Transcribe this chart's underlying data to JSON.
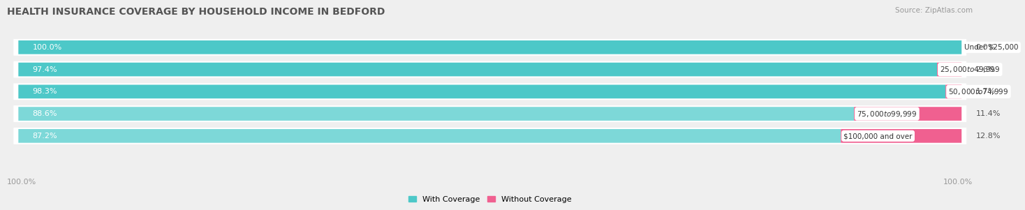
{
  "title": "HEALTH INSURANCE COVERAGE BY HOUSEHOLD INCOME IN BEDFORD",
  "source": "Source: ZipAtlas.com",
  "categories": [
    "Under $25,000",
    "$25,000 to $49,999",
    "$50,000 to $74,999",
    "$75,000 to $99,999",
    "$100,000 and over"
  ],
  "with_coverage": [
    100.0,
    97.4,
    98.3,
    88.6,
    87.2
  ],
  "without_coverage": [
    0.0,
    2.6,
    1.7,
    11.4,
    12.8
  ],
  "color_with": "#4dc8c8",
  "color_with_light": "#7dd8d8",
  "color_without": "#f06090",
  "bar_height": 0.62,
  "background_color": "#efefef",
  "bar_bg_color": "#ffffff",
  "title_fontsize": 10,
  "label_fontsize": 8,
  "legend_fontsize": 8,
  "source_fontsize": 7.5
}
